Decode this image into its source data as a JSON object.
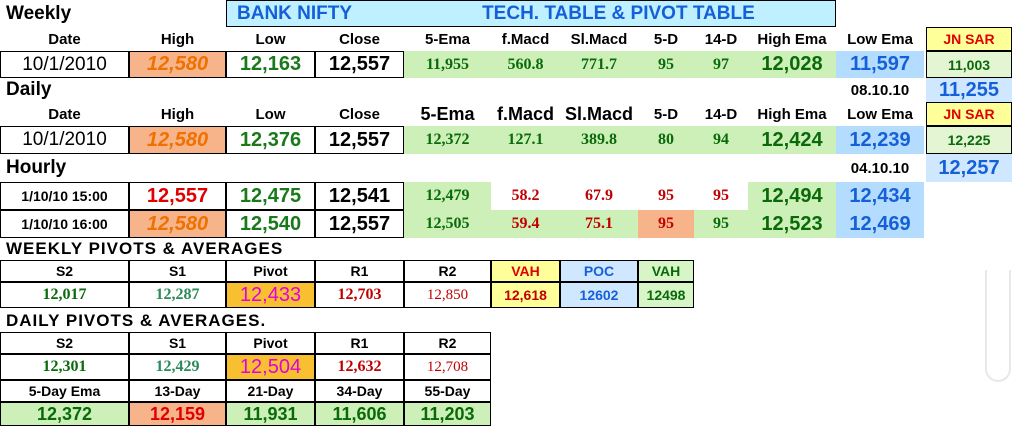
{
  "header": {
    "weekly": "Weekly",
    "bank": "BANK   NIFTY",
    "tech": "TECH. TABLE   &   PIVOT TABLE"
  },
  "cols": {
    "date": "Date",
    "high": "High",
    "low": "Low",
    "close": "Close",
    "ema5": "5-Ema",
    "fmacd": "f.Macd",
    "slmacd": "Sl.Macd",
    "d5": "5-D",
    "d14": "14-D",
    "highema": "High Ema",
    "lowema": "Low Ema",
    "jnsar": "JN SAR"
  },
  "weekly_row": {
    "date": "10/1/2010",
    "high": "12,580",
    "low": "12,163",
    "close": "12,557",
    "ema5": "11,955",
    "fmacd": "560.8",
    "slmacd": "771.7",
    "d5": "95",
    "d14": "97",
    "highema": "12,028",
    "lowema": "11,597",
    "jnsar": "11,003"
  },
  "daily": {
    "label": "Daily",
    "sar_date": "08.10.10",
    "sar_val": "11,255"
  },
  "daily_row": {
    "date": "10/1/2010",
    "high": "12,580",
    "low": "12,376",
    "close": "12,557",
    "ema5": "12,372",
    "fmacd": "127.1",
    "slmacd": "389.8",
    "d5": "80",
    "d14": "94",
    "highema": "12,424",
    "lowema": "12,239",
    "jnsar": "12,225"
  },
  "hourly": {
    "label": "Hourly",
    "sar_date": "04.10.10",
    "sar_val": "12,257"
  },
  "hourly_rows": [
    {
      "date": "1/10/10 15:00",
      "high": "12,557",
      "low": "12,475",
      "close": "12,541",
      "ema5": "12,479",
      "fmacd": "58.2",
      "slmacd": "67.9",
      "d5": "95",
      "d14": "95",
      "highema": "12,494",
      "lowema": "12,434"
    },
    {
      "date": "1/10/10 16:00",
      "high": "12,580",
      "low": "12,540",
      "close": "12,557",
      "ema5": "12,505",
      "fmacd": "59.4",
      "slmacd": "75.1",
      "d5": "95",
      "d14": "95",
      "highema": "12,523",
      "lowema": "12,469"
    }
  ],
  "weekly_pivots": {
    "title": "WEEKLY  PIVOTS  &  AVERAGES",
    "h": {
      "s2": "S2",
      "s1": "S1",
      "pivot": "Pivot",
      "r1": "R1",
      "r2": "R2",
      "vah": "VAH",
      "poc": "POC",
      "val": "VAH"
    },
    "v": {
      "s2": "12,017",
      "s1": "12,287",
      "pivot": "12,433",
      "r1": "12,703",
      "r2": "12,850",
      "vah": "12,618",
      "poc": "12602",
      "val": "12498"
    }
  },
  "daily_pivots": {
    "title": "DAILY  PIVOTS   &  AVERAGES.",
    "h": {
      "s2": "S2",
      "s1": "S1",
      "pivot": "Pivot",
      "r1": "R1",
      "r2": "R2"
    },
    "v": {
      "s2": "12,301",
      "s1": "12,429",
      "pivot": "12,504",
      "r1": "12,632",
      "r2": "12,708"
    },
    "ah": {
      "e5": "5-Day Ema",
      "d13": "13-Day",
      "d21": "21-Day",
      "d34": "34-Day",
      "d55": "55-Day"
    },
    "av": {
      "e5": "12,372",
      "d13": "12,159",
      "d21": "11,931",
      "d34": "11,606",
      "d55": "11,203"
    }
  }
}
